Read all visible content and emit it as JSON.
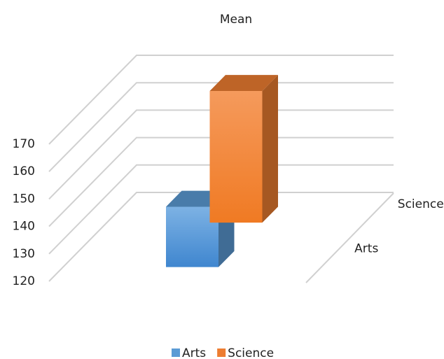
{
  "chart_data": {
    "type": "bar3d",
    "title": "Mean",
    "categories": [
      null
    ],
    "series": [
      {
        "name": "Arts",
        "color": "#5b9bd5",
        "values": [
          142
        ]
      },
      {
        "name": "Science",
        "color": "#ed7d31",
        "values": [
          168
        ]
      }
    ],
    "ylim": [
      120,
      170
    ],
    "yticks": [
      120,
      130,
      140,
      150,
      160,
      170
    ],
    "grid": true,
    "legend": "bottom"
  }
}
